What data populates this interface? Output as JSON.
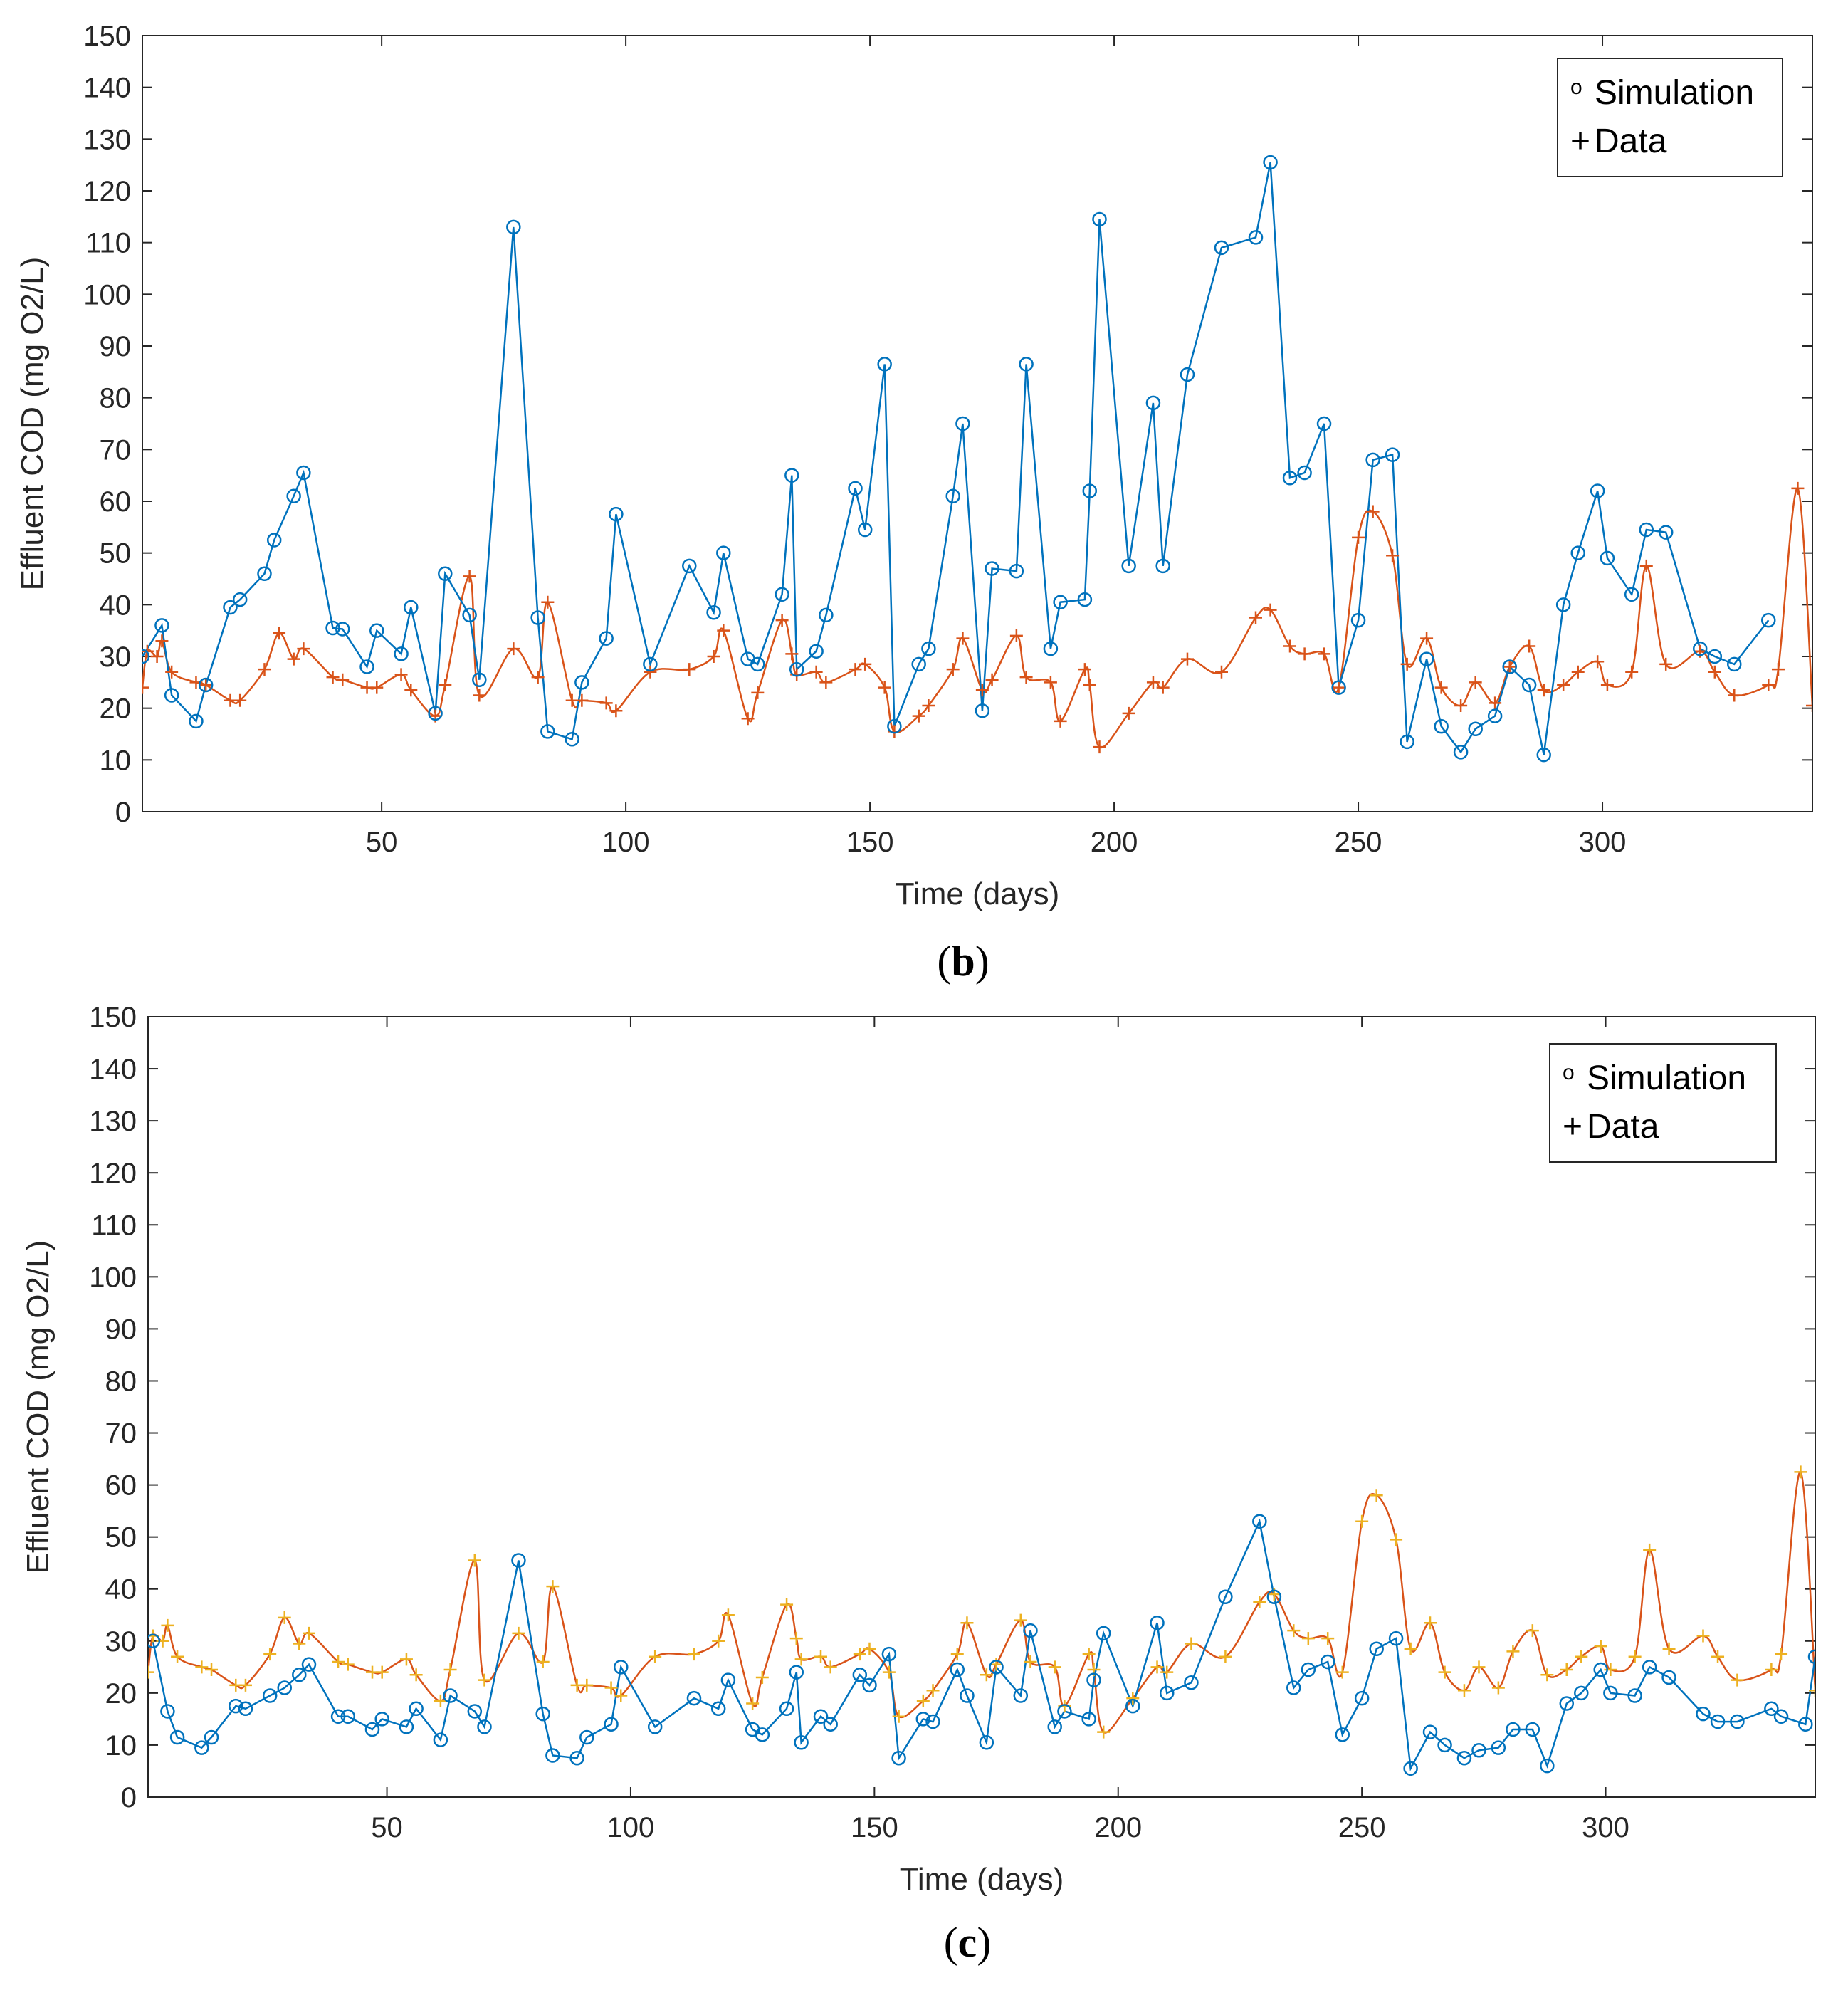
{
  "colors": {
    "simulation": "#0072BD",
    "data_b": "#D95319",
    "line_c_data": "#D95319",
    "markers_c_data": "#EDB120",
    "axes": "#262626"
  },
  "chart_data": [
    {
      "type": "line",
      "panel_label": "b",
      "xlabel": "Time (days)",
      "ylabel": "Effluent COD (mg O2/L)",
      "xlim": [
        1,
        343
      ],
      "ylim": [
        0,
        150
      ],
      "xticks": [
        50,
        100,
        150,
        200,
        250,
        300
      ],
      "yticks": [
        0,
        10,
        20,
        30,
        40,
        50,
        60,
        70,
        80,
        90,
        100,
        110,
        120,
        130,
        140,
        150
      ],
      "legend": [
        {
          "symbol": "o",
          "label": "Simulation"
        },
        {
          "symbol": "+",
          "label": "Data"
        }
      ],
      "legend_position": "top-right",
      "series": [
        {
          "name": "Simulation",
          "marker": "o",
          "style": "straight",
          "x": [
            1,
            5,
            7,
            12,
            14,
            19,
            21,
            26,
            28,
            32,
            34,
            40,
            42,
            47,
            49,
            54,
            56,
            61,
            63,
            68,
            70,
            77,
            82,
            84,
            89,
            91,
            96,
            98,
            105,
            113,
            118,
            120,
            125,
            127,
            132,
            134,
            135,
            139,
            141,
            147,
            149,
            153,
            155,
            160,
            162,
            167,
            169,
            173,
            175,
            180,
            182,
            187,
            189,
            194,
            195,
            197,
            203,
            208,
            210,
            215,
            222,
            229,
            232,
            236,
            239,
            243,
            246,
            250,
            253,
            257,
            260,
            264,
            267,
            271,
            274,
            278,
            281,
            285,
            288,
            292,
            295,
            299,
            301,
            306,
            309,
            313,
            320,
            323,
            327,
            334
          ],
          "y": [
            30,
            36,
            22.5,
            17.5,
            24.5,
            39.5,
            41,
            46,
            52.5,
            61,
            65.5,
            35.5,
            35.3,
            28,
            35,
            30.5,
            39.5,
            19,
            46,
            38,
            25.5,
            113,
            37.5,
            15.5,
            14,
            25,
            33.5,
            57.5,
            28.5,
            47.5,
            38.5,
            50,
            29.5,
            28.5,
            42,
            65,
            27.5,
            31,
            38,
            62.5,
            54.5,
            86.5,
            16.5,
            28.5,
            31.5,
            61,
            75,
            19.5,
            47,
            46.5,
            86.5,
            31.5,
            40.5,
            41,
            62,
            114.5,
            47.5,
            79,
            47.5,
            84.5,
            109,
            111,
            125.5,
            64.5,
            65.5,
            75,
            24,
            37,
            68,
            69,
            13.5,
            29.5,
            16.5,
            11.5,
            16,
            18.5,
            28,
            24.5,
            11,
            40,
            50,
            62,
            49,
            42,
            54.5,
            54,
            31.5,
            30,
            28.5,
            37
          ]
        },
        {
          "name": "Data",
          "marker": "+",
          "style": "smooth",
          "x": [
            1,
            2,
            4,
            5,
            7,
            12,
            14,
            19,
            21,
            26,
            29,
            32,
            34,
            40,
            42,
            47,
            49,
            54,
            56,
            61,
            63,
            68,
            70,
            77,
            82,
            84,
            89,
            91,
            96,
            98,
            105,
            113,
            118,
            120,
            125,
            127,
            132,
            134,
            135,
            139,
            141,
            147,
            149,
            153,
            155,
            160,
            162,
            167,
            169,
            173,
            175,
            180,
            182,
            187,
            189,
            194,
            195,
            197,
            203,
            208,
            210,
            215,
            222,
            229,
            232,
            236,
            239,
            243,
            246,
            250,
            253,
            257,
            260,
            264,
            267,
            271,
            274,
            278,
            281,
            285,
            288,
            292,
            295,
            299,
            301,
            306,
            309,
            313,
            320,
            323,
            327,
            334,
            336,
            340,
            343
          ],
          "y": [
            24,
            31,
            30,
            33,
            27,
            25,
            24.5,
            21.5,
            21.5,
            27.5,
            34.5,
            29.5,
            31.5,
            26,
            25.5,
            24,
            24,
            26.5,
            23.5,
            18.5,
            24.5,
            45.5,
            22.5,
            31.5,
            26,
            40.5,
            21.5,
            21.5,
            21,
            19.5,
            27,
            27.5,
            30,
            35,
            18,
            23,
            37,
            30.5,
            26.5,
            27,
            25,
            27.5,
            28.5,
            24,
            15.5,
            18.5,
            20.5,
            27.5,
            33.5,
            23.5,
            25.5,
            34,
            26,
            25,
            17.5,
            27.5,
            24.5,
            12.5,
            19,
            25,
            24,
            29.5,
            27,
            37.5,
            39,
            32,
            30.5,
            30.5,
            24,
            53,
            58,
            49.5,
            28.5,
            33.5,
            24,
            20.5,
            25,
            21,
            28,
            32,
            23.5,
            24.5,
            27,
            29,
            24.5,
            27,
            47.5,
            28.5,
            31,
            27,
            22.5,
            24.5,
            27.5,
            62.5,
            20.5
          ]
        }
      ]
    },
    {
      "type": "line",
      "panel_label": "c",
      "xlabel": "Time (days)",
      "ylabel": "Effluent COD (mg O2/L)",
      "xlim": [
        1,
        343
      ],
      "ylim": [
        0,
        150
      ],
      "xticks": [
        50,
        100,
        150,
        200,
        250,
        300
      ],
      "yticks": [
        0,
        10,
        20,
        30,
        40,
        50,
        60,
        70,
        80,
        90,
        100,
        110,
        120,
        130,
        140,
        150
      ],
      "legend": [
        {
          "symbol": "o",
          "label": "Simulation"
        },
        {
          "symbol": "+",
          "label": "Data"
        }
      ],
      "legend_position": "top-right",
      "series": [
        {
          "name": "Simulation",
          "marker": "o",
          "style": "straight",
          "x": [
            2,
            5,
            7,
            12,
            14,
            19,
            21,
            26,
            29,
            32,
            34,
            40,
            42,
            47,
            49,
            54,
            56,
            61,
            63,
            68,
            70,
            77,
            82,
            84,
            89,
            91,
            96,
            98,
            105,
            113,
            118,
            120,
            125,
            127,
            132,
            134,
            135,
            139,
            141,
            147,
            149,
            153,
            155,
            160,
            162,
            167,
            169,
            173,
            175,
            180,
            182,
            187,
            189,
            194,
            195,
            197,
            203,
            208,
            210,
            215,
            222,
            229,
            232,
            236,
            239,
            243,
            246,
            250,
            253,
            257,
            260,
            264,
            267,
            271,
            274,
            278,
            281,
            285,
            288,
            292,
            295,
            299,
            301,
            306,
            309,
            313,
            320,
            323,
            327,
            334,
            336,
            341,
            343
          ],
          "y": [
            30,
            16.5,
            11.5,
            9.5,
            11.5,
            17.5,
            17,
            19.5,
            21,
            23.5,
            25.5,
            15.5,
            15.5,
            13,
            15,
            13.5,
            17,
            11,
            19.5,
            16.5,
            13.5,
            45.5,
            16,
            8,
            7.5,
            11.5,
            14,
            25,
            13.5,
            19,
            17,
            22.5,
            13,
            12,
            17,
            24,
            10.5,
            15.5,
            14,
            23.5,
            21.5,
            27.5,
            7.5,
            15,
            14.5,
            24.5,
            19.5,
            10.5,
            25,
            19.5,
            32,
            13.5,
            16.5,
            15,
            22.5,
            31.5,
            17.5,
            33.5,
            20,
            22,
            38.5,
            53,
            38.5,
            21,
            24.5,
            26,
            12,
            19,
            28.5,
            30.5,
            5.5,
            12.5,
            10,
            7.5,
            9,
            9.5,
            13,
            13,
            6,
            18,
            20,
            24.5,
            20,
            19.5,
            25,
            23,
            16,
            14.5,
            14.5,
            17,
            15.5,
            14,
            27
          ]
        },
        {
          "name": "Data",
          "marker": "+",
          "style": "smooth",
          "x": [
            1,
            2,
            4,
            5,
            7,
            12,
            14,
            19,
            21,
            26,
            29,
            32,
            34,
            40,
            42,
            47,
            49,
            54,
            56,
            61,
            63,
            68,
            70,
            77,
            82,
            84,
            89,
            91,
            96,
            98,
            105,
            113,
            118,
            120,
            125,
            127,
            132,
            134,
            135,
            139,
            141,
            147,
            149,
            153,
            155,
            160,
            162,
            167,
            169,
            173,
            175,
            180,
            182,
            187,
            189,
            194,
            195,
            197,
            203,
            208,
            210,
            215,
            222,
            229,
            232,
            236,
            239,
            243,
            246,
            250,
            253,
            257,
            260,
            264,
            267,
            271,
            274,
            278,
            281,
            285,
            288,
            292,
            295,
            299,
            301,
            306,
            309,
            313,
            320,
            323,
            327,
            334,
            336,
            340,
            343
          ],
          "y": [
            24,
            31,
            30,
            33,
            27,
            25,
            24.5,
            21.5,
            21.5,
            27.5,
            34.5,
            29.5,
            31.5,
            26,
            25.5,
            24,
            24,
            26.5,
            23.5,
            18.5,
            24.5,
            45.5,
            22.5,
            31.5,
            26,
            40.5,
            21.5,
            21.5,
            21,
            19.5,
            27,
            27.5,
            30,
            35,
            18,
            23,
            37,
            30.5,
            26.5,
            27,
            25,
            27.5,
            28.5,
            24,
            15.5,
            18.5,
            20.5,
            27.5,
            33.5,
            23.5,
            25.5,
            34,
            26,
            25,
            17.5,
            27.5,
            24.5,
            12.5,
            19,
            25,
            24,
            29.5,
            27,
            37.5,
            39,
            32,
            30.5,
            30.5,
            24,
            53,
            58,
            49.5,
            28.5,
            33.5,
            24,
            20.5,
            25,
            21,
            28,
            32,
            23.5,
            24.5,
            27,
            29,
            24.5,
            27,
            47.5,
            28.5,
            31,
            27,
            22.5,
            24.5,
            27.5,
            62.5,
            20.5
          ]
        }
      ]
    }
  ]
}
